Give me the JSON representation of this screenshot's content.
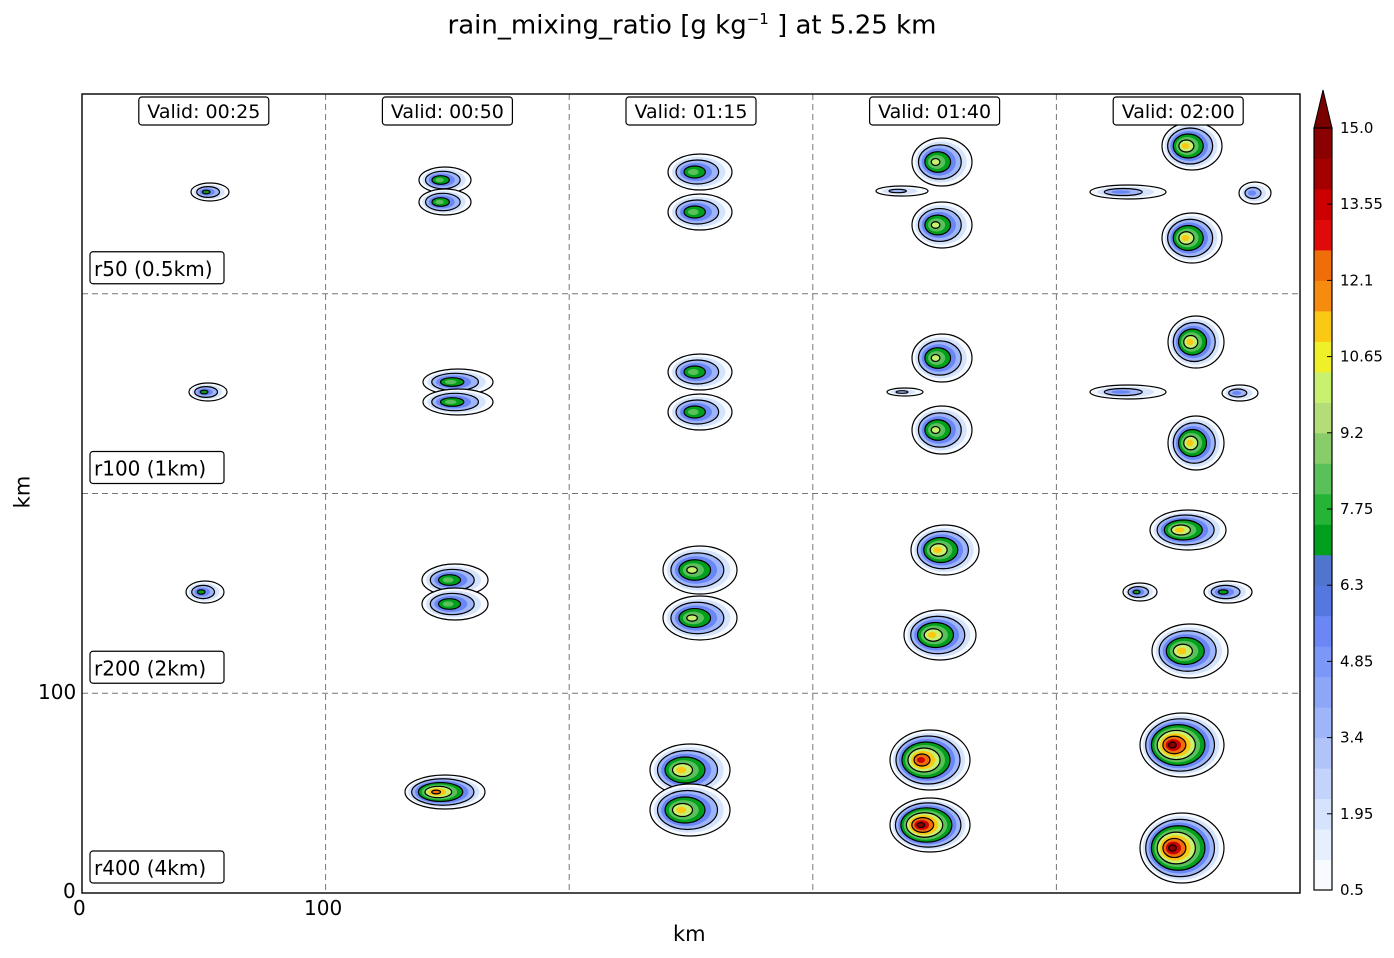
{
  "chart_data": {
    "type": "heatmap",
    "title_prefix": "rain_mixing_ratio [g kg",
    "title_exp": "−1",
    "title_suffix": " ] at 5.25 km",
    "xlabel": "km",
    "ylabel": "km",
    "x_ticks": [
      "0",
      "100"
    ],
    "y_ticks": [
      "0",
      "100"
    ],
    "columns": [
      "Valid: 00:25",
      "Valid: 00:50",
      "Valid: 01:15",
      "Valid: 01:40",
      "Valid: 02:00"
    ],
    "rows": [
      "r50 (0.5km)",
      "r100 (1km)",
      "r200 (2km)",
      "r400 (4km)"
    ],
    "grid": "dashed",
    "colorbar": {
      "min": 0.5,
      "max": 15.0,
      "extend": "max",
      "tick_labels": [
        "0.5",
        "1.95",
        "3.4",
        "4.85",
        "6.3",
        "7.75",
        "9.2",
        "10.65",
        "12.1",
        "13.55",
        "15.0"
      ],
      "colors": [
        "#f7fbff",
        "#e6effd",
        "#d6e3fc",
        "#c3d3fb",
        "#b1c4fa",
        "#9fb5f9",
        "#8da6f8",
        "#7b97f7",
        "#6a87f5",
        "#5577e0",
        "#4f75cc",
        "#00a01e",
        "#25b536",
        "#5ac15a",
        "#89cc6a",
        "#b4dc78",
        "#c9f170",
        "#f0f028",
        "#fbc814",
        "#f68c0f",
        "#f06e0a",
        "#e10a0a",
        "#cc0000",
        "#a50000",
        "#8b0000"
      ],
      "over_color": "#7a0000"
    }
  }
}
